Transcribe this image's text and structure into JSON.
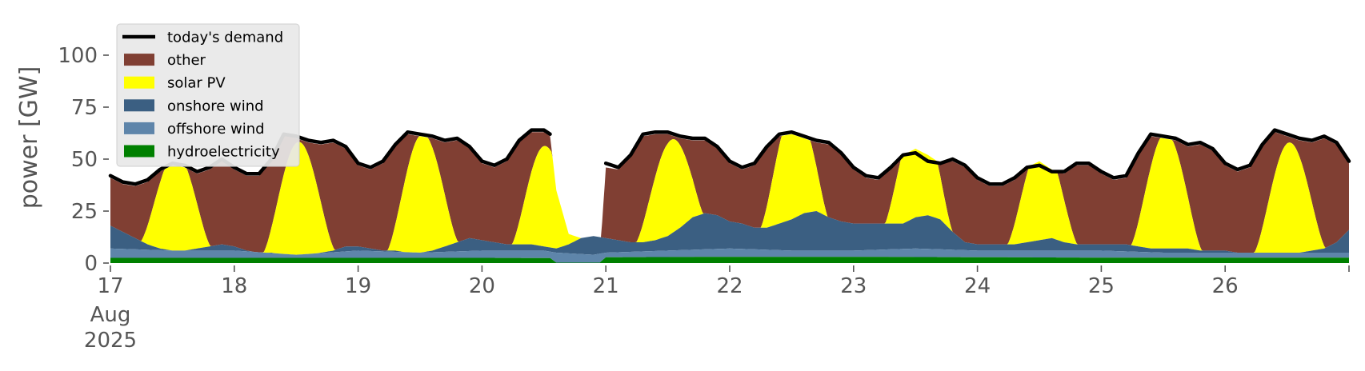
{
  "chart_data": {
    "type": "area",
    "stacked": true,
    "title": "",
    "xlabel": "",
    "ylabel": "power [GW]",
    "ylim": [
      0,
      120
    ],
    "y_ticks": [
      0,
      25,
      50,
      75,
      100
    ],
    "xlim": [
      17,
      27
    ],
    "x_tick_labels": [
      "17",
      "18",
      "19",
      "20",
      "21",
      "22",
      "23",
      "24",
      "25",
      "26"
    ],
    "x_tick_values": [
      17,
      18,
      19,
      20,
      21,
      22,
      23,
      24,
      25,
      26
    ],
    "x_extra_ticks": [
      27
    ],
    "x_month_label": "Aug",
    "x_year_label": "2025",
    "x_unit": "day of August 2025",
    "grid": false,
    "legend_placement": "top-left",
    "legend": [
      {
        "key": "demand",
        "label": "today's demand",
        "kind": "line"
      },
      {
        "key": "other",
        "label": "other",
        "kind": "patch"
      },
      {
        "key": "solar",
        "label": "solar PV",
        "kind": "patch"
      },
      {
        "key": "onshore",
        "label": "onshore wind",
        "kind": "patch"
      },
      {
        "key": "offshore",
        "label": "offshore wind",
        "kind": "patch"
      },
      {
        "key": "hydro",
        "label": "hydroelectricity",
        "kind": "patch"
      }
    ],
    "colors": {
      "demand": "#000000",
      "other": "#803f33",
      "solar": "#ffff00",
      "onshore": "#3b5f82",
      "offshore": "#5e85aa",
      "hydro": "#008000"
    },
    "gap": [
      20.56,
      20.96
    ],
    "demand": [
      [
        17.0,
        42
      ],
      [
        17.1,
        39
      ],
      [
        17.2,
        38
      ],
      [
        17.3,
        40
      ],
      [
        17.4,
        45
      ],
      [
        17.5,
        48
      ],
      [
        17.6,
        47
      ],
      [
        17.7,
        44
      ],
      [
        17.8,
        46
      ],
      [
        17.9,
        50
      ],
      [
        18.0,
        46
      ],
      [
        18.1,
        43
      ],
      [
        18.2,
        43
      ],
      [
        18.3,
        50
      ],
      [
        18.4,
        62
      ],
      [
        18.5,
        61
      ],
      [
        18.6,
        59
      ],
      [
        18.7,
        58
      ],
      [
        18.8,
        59
      ],
      [
        18.9,
        56
      ],
      [
        19.0,
        48
      ],
      [
        19.1,
        46
      ],
      [
        19.2,
        49
      ],
      [
        19.3,
        57
      ],
      [
        19.4,
        63
      ],
      [
        19.5,
        62
      ],
      [
        19.6,
        61
      ],
      [
        19.7,
        59
      ],
      [
        19.8,
        60
      ],
      [
        19.9,
        56
      ],
      [
        20.0,
        49
      ],
      [
        20.1,
        47
      ],
      [
        20.2,
        50
      ],
      [
        20.3,
        59
      ],
      [
        20.4,
        64
      ],
      [
        20.5,
        64
      ],
      [
        20.55,
        62
      ],
      [
        21.0,
        48
      ],
      [
        21.1,
        46
      ],
      [
        21.2,
        52
      ],
      [
        21.3,
        62
      ],
      [
        21.4,
        63
      ],
      [
        21.5,
        63
      ],
      [
        21.6,
        61
      ],
      [
        21.7,
        60
      ],
      [
        21.8,
        60
      ],
      [
        21.9,
        56
      ],
      [
        22.0,
        49
      ],
      [
        22.1,
        46
      ],
      [
        22.2,
        48
      ],
      [
        22.3,
        56
      ],
      [
        22.4,
        62
      ],
      [
        22.5,
        63
      ],
      [
        22.6,
        61
      ],
      [
        22.7,
        59
      ],
      [
        22.8,
        58
      ],
      [
        22.9,
        53
      ],
      [
        23.0,
        46
      ],
      [
        23.1,
        42
      ],
      [
        23.2,
        41
      ],
      [
        23.3,
        46
      ],
      [
        23.4,
        52
      ],
      [
        23.5,
        53
      ],
      [
        23.6,
        49
      ],
      [
        23.7,
        48
      ],
      [
        23.8,
        50
      ],
      [
        23.9,
        47
      ],
      [
        24.0,
        41
      ],
      [
        24.1,
        38
      ],
      [
        24.2,
        38
      ],
      [
        24.3,
        41
      ],
      [
        24.4,
        46
      ],
      [
        24.5,
        47
      ],
      [
        24.6,
        44
      ],
      [
        24.7,
        44
      ],
      [
        24.8,
        48
      ],
      [
        24.9,
        48
      ],
      [
        25.0,
        44
      ],
      [
        25.1,
        41
      ],
      [
        25.2,
        42
      ],
      [
        25.3,
        53
      ],
      [
        25.4,
        62
      ],
      [
        25.5,
        61
      ],
      [
        25.6,
        60
      ],
      [
        25.7,
        57
      ],
      [
        25.8,
        58
      ],
      [
        25.9,
        55
      ],
      [
        26.0,
        48
      ],
      [
        26.1,
        45
      ],
      [
        26.2,
        47
      ],
      [
        26.3,
        57
      ],
      [
        26.4,
        64
      ],
      [
        26.5,
        62
      ],
      [
        26.6,
        60
      ],
      [
        26.7,
        59
      ],
      [
        26.8,
        61
      ],
      [
        26.9,
        58
      ],
      [
        27.0,
        49
      ]
    ],
    "top": [
      [
        17.0,
        41
      ],
      [
        17.1,
        38
      ],
      [
        17.2,
        37
      ],
      [
        17.3,
        39
      ],
      [
        17.4,
        44
      ],
      [
        17.5,
        47
      ],
      [
        17.6,
        46
      ],
      [
        17.7,
        43
      ],
      [
        17.8,
        45
      ],
      [
        17.9,
        49
      ],
      [
        18.0,
        45
      ],
      [
        18.1,
        42
      ],
      [
        18.2,
        42
      ],
      [
        18.3,
        49
      ],
      [
        18.4,
        62
      ],
      [
        18.5,
        60
      ],
      [
        18.6,
        58
      ],
      [
        18.7,
        57
      ],
      [
        18.8,
        58
      ],
      [
        18.9,
        55
      ],
      [
        19.0,
        47
      ],
      [
        19.1,
        45
      ],
      [
        19.2,
        48
      ],
      [
        19.3,
        56
      ],
      [
        19.4,
        62
      ],
      [
        19.5,
        61
      ],
      [
        19.6,
        60
      ],
      [
        19.7,
        58
      ],
      [
        19.8,
        59
      ],
      [
        19.9,
        55
      ],
      [
        20.0,
        48
      ],
      [
        20.1,
        46
      ],
      [
        20.2,
        49
      ],
      [
        20.3,
        58
      ],
      [
        20.4,
        63
      ],
      [
        20.5,
        63
      ],
      [
        20.55,
        61
      ],
      [
        20.6,
        35
      ],
      [
        20.7,
        14
      ],
      [
        20.8,
        12
      ],
      [
        20.9,
        13
      ],
      [
        20.96,
        11
      ],
      [
        21.0,
        46
      ],
      [
        21.1,
        45
      ],
      [
        21.2,
        51
      ],
      [
        21.3,
        61
      ],
      [
        21.4,
        62
      ],
      [
        21.5,
        62
      ],
      [
        21.6,
        60
      ],
      [
        21.7,
        59
      ],
      [
        21.8,
        59
      ],
      [
        21.9,
        55
      ],
      [
        22.0,
        48
      ],
      [
        22.1,
        45
      ],
      [
        22.2,
        47
      ],
      [
        22.3,
        55
      ],
      [
        22.4,
        61
      ],
      [
        22.5,
        62
      ],
      [
        22.6,
        60
      ],
      [
        22.7,
        58
      ],
      [
        22.8,
        57
      ],
      [
        22.9,
        52
      ],
      [
        23.0,
        45
      ],
      [
        23.1,
        41
      ],
      [
        23.2,
        40
      ],
      [
        23.3,
        45
      ],
      [
        23.4,
        52
      ],
      [
        23.5,
        55
      ],
      [
        23.6,
        52
      ],
      [
        23.7,
        48
      ],
      [
        23.8,
        49
      ],
      [
        23.9,
        46
      ],
      [
        24.0,
        40
      ],
      [
        24.1,
        37
      ],
      [
        24.2,
        37
      ],
      [
        24.3,
        40
      ],
      [
        24.4,
        46
      ],
      [
        24.5,
        49
      ],
      [
        24.6,
        45
      ],
      [
        24.7,
        43
      ],
      [
        24.8,
        47
      ],
      [
        24.9,
        47
      ],
      [
        25.0,
        43
      ],
      [
        25.1,
        40
      ],
      [
        25.2,
        41
      ],
      [
        25.3,
        52
      ],
      [
        25.4,
        61
      ],
      [
        25.5,
        60
      ],
      [
        25.6,
        59
      ],
      [
        25.7,
        56
      ],
      [
        25.8,
        57
      ],
      [
        25.9,
        54
      ],
      [
        26.0,
        47
      ],
      [
        26.1,
        44
      ],
      [
        26.2,
        46
      ],
      [
        26.3,
        56
      ],
      [
        26.4,
        63
      ],
      [
        26.5,
        61
      ],
      [
        26.6,
        59
      ],
      [
        26.7,
        58
      ],
      [
        26.8,
        60
      ],
      [
        26.9,
        57
      ],
      [
        27.0,
        48
      ]
    ],
    "wind_total": [
      [
        17.0,
        18
      ],
      [
        17.1,
        15
      ],
      [
        17.2,
        12
      ],
      [
        17.3,
        9
      ],
      [
        17.4,
        7
      ],
      [
        17.5,
        6
      ],
      [
        17.6,
        6
      ],
      [
        17.7,
        7
      ],
      [
        17.8,
        8
      ],
      [
        17.9,
        9
      ],
      [
        18.0,
        8
      ],
      [
        18.1,
        6
      ],
      [
        18.2,
        5
      ],
      [
        18.3,
        5
      ],
      [
        18.4,
        4
      ],
      [
        18.5,
        4
      ],
      [
        18.6,
        4
      ],
      [
        18.7,
        5
      ],
      [
        18.8,
        6
      ],
      [
        18.9,
        8
      ],
      [
        19.0,
        8
      ],
      [
        19.1,
        7
      ],
      [
        19.2,
        6
      ],
      [
        19.3,
        6
      ],
      [
        19.4,
        5
      ],
      [
        19.5,
        5
      ],
      [
        19.6,
        6
      ],
      [
        19.7,
        8
      ],
      [
        19.8,
        10
      ],
      [
        19.9,
        12
      ],
      [
        20.0,
        11
      ],
      [
        20.1,
        10
      ],
      [
        20.2,
        9
      ],
      [
        20.3,
        9
      ],
      [
        20.4,
        9
      ],
      [
        20.5,
        8
      ],
      [
        20.6,
        7
      ],
      [
        20.7,
        9
      ],
      [
        20.8,
        12
      ],
      [
        20.9,
        13
      ],
      [
        21.0,
        12
      ],
      [
        21.1,
        11
      ],
      [
        21.2,
        10
      ],
      [
        21.3,
        10
      ],
      [
        21.4,
        11
      ],
      [
        21.5,
        13
      ],
      [
        21.6,
        17
      ],
      [
        21.7,
        22
      ],
      [
        21.8,
        24
      ],
      [
        21.9,
        23
      ],
      [
        22.0,
        20
      ],
      [
        22.1,
        19
      ],
      [
        22.2,
        17
      ],
      [
        22.3,
        17
      ],
      [
        22.4,
        19
      ],
      [
        22.5,
        21
      ],
      [
        22.6,
        24
      ],
      [
        22.7,
        25
      ],
      [
        22.8,
        22
      ],
      [
        22.9,
        20
      ],
      [
        23.0,
        19
      ],
      [
        23.1,
        19
      ],
      [
        23.2,
        19
      ],
      [
        23.3,
        19
      ],
      [
        23.4,
        19
      ],
      [
        23.5,
        22
      ],
      [
        23.6,
        23
      ],
      [
        23.7,
        21
      ],
      [
        23.8,
        15
      ],
      [
        23.9,
        10
      ],
      [
        24.0,
        9
      ],
      [
        24.1,
        9
      ],
      [
        24.2,
        9
      ],
      [
        24.3,
        9
      ],
      [
        24.4,
        10
      ],
      [
        24.5,
        11
      ],
      [
        24.6,
        12
      ],
      [
        24.7,
        10
      ],
      [
        24.8,
        9
      ],
      [
        24.9,
        9
      ],
      [
        25.0,
        9
      ],
      [
        25.1,
        9
      ],
      [
        25.2,
        9
      ],
      [
        25.3,
        8
      ],
      [
        25.4,
        7
      ],
      [
        25.5,
        7
      ],
      [
        25.6,
        7
      ],
      [
        25.7,
        7
      ],
      [
        25.8,
        6
      ],
      [
        25.9,
        6
      ],
      [
        26.0,
        6
      ],
      [
        26.1,
        5
      ],
      [
        26.2,
        5
      ],
      [
        26.3,
        5
      ],
      [
        26.4,
        5
      ],
      [
        26.5,
        5
      ],
      [
        26.6,
        5
      ],
      [
        26.7,
        6
      ],
      [
        26.8,
        7
      ],
      [
        26.9,
        10
      ],
      [
        27.0,
        16
      ]
    ],
    "offshore_top": [
      [
        17.0,
        7
      ],
      [
        17.5,
        6
      ],
      [
        18.0,
        6
      ],
      [
        18.5,
        4
      ],
      [
        19.0,
        6
      ],
      [
        19.5,
        5
      ],
      [
        20.0,
        6
      ],
      [
        20.5,
        6
      ],
      [
        20.6,
        5
      ],
      [
        20.9,
        4
      ],
      [
        21.0,
        5
      ],
      [
        21.5,
        6
      ],
      [
        22.0,
        7
      ],
      [
        22.5,
        6
      ],
      [
        23.0,
        6
      ],
      [
        23.5,
        7
      ],
      [
        24.0,
        6
      ],
      [
        24.5,
        6
      ],
      [
        25.0,
        6
      ],
      [
        25.5,
        5
      ],
      [
        26.0,
        5
      ],
      [
        26.5,
        5
      ],
      [
        27.0,
        5
      ]
    ],
    "hydro_top": [
      [
        17.0,
        2.5
      ],
      [
        18.0,
        2.5
      ],
      [
        19.0,
        2.5
      ],
      [
        20.0,
        2.5
      ],
      [
        20.55,
        2.4
      ],
      [
        20.6,
        0.2
      ],
      [
        20.95,
        0.2
      ],
      [
        21.0,
        2.8
      ],
      [
        22.0,
        3.0
      ],
      [
        23.0,
        3.0
      ],
      [
        24.0,
        2.8
      ],
      [
        25.0,
        2.6
      ],
      [
        26.0,
        2.6
      ],
      [
        27.0,
        2.6
      ]
    ],
    "solar_peaks": [
      {
        "day": 17,
        "start": 17.22,
        "end": 17.83,
        "peak_x": 17.53,
        "peak": 48
      },
      {
        "day": 18,
        "start": 18.22,
        "end": 18.83,
        "peak_x": 18.52,
        "peak": 55
      },
      {
        "day": 19,
        "start": 19.22,
        "end": 19.83,
        "peak_x": 19.52,
        "peak": 58
      },
      {
        "day": 20,
        "start": 20.22,
        "end": 20.83,
        "peak_x": 20.51,
        "peak": 50
      },
      {
        "day": 21,
        "start": 21.22,
        "end": 21.83,
        "peak_x": 21.53,
        "peak": 48
      },
      {
        "day": 22,
        "start": 22.22,
        "end": 22.83,
        "peak_x": 22.52,
        "peak": 58
      },
      {
        "day": 23,
        "start": 23.22,
        "end": 23.83,
        "peak_x": 23.52,
        "peak": 55
      },
      {
        "day": 24,
        "start": 24.22,
        "end": 24.83,
        "peak_x": 24.52,
        "peak": 49
      },
      {
        "day": 25,
        "start": 25.22,
        "end": 25.83,
        "peak_x": 25.52,
        "peak": 57
      },
      {
        "day": 26,
        "start": 26.22,
        "end": 26.83,
        "peak_x": 26.52,
        "peak": 54
      }
    ]
  }
}
